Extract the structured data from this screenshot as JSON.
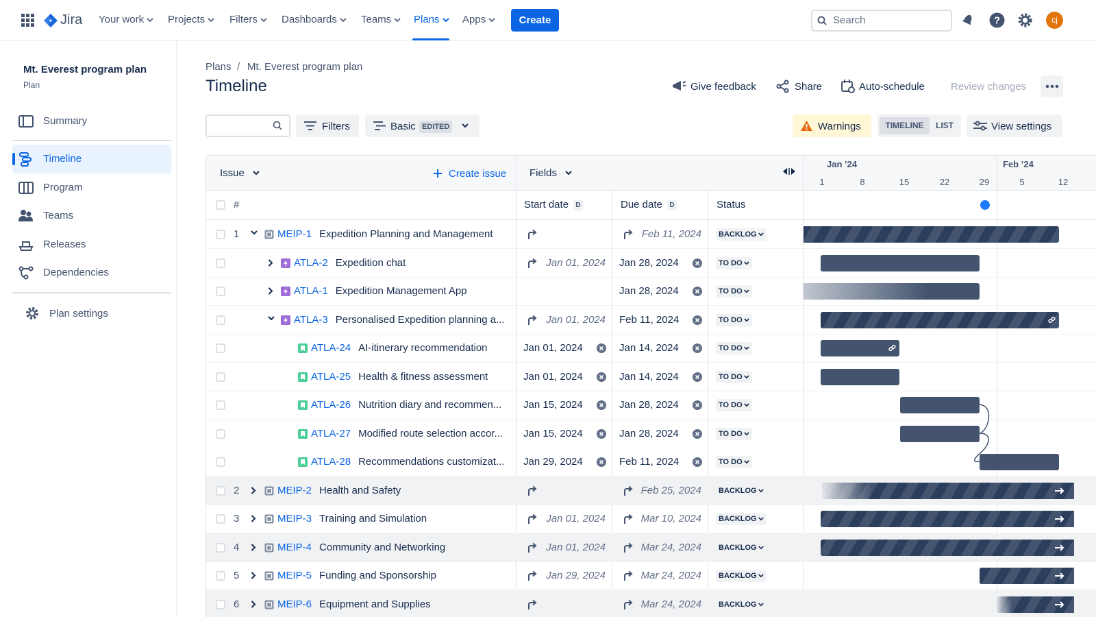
{
  "nav": {
    "logo": "Jira",
    "items": [
      "Your work",
      "Projects",
      "Filters",
      "Dashboards",
      "Teams",
      "Plans",
      "Apps"
    ],
    "active": 5,
    "create": "Create",
    "search": "Search",
    "avatar": "cj"
  },
  "sidebar": {
    "title": "Mt. Everest program plan",
    "subtitle": "Plan",
    "items": [
      "Summary",
      "Timeline",
      "Program",
      "Teams",
      "Releases",
      "Dependencies"
    ],
    "active": 1,
    "settings": "Plan settings"
  },
  "header": {
    "breadcrumb": [
      "Plans",
      "Mt. Everest program plan"
    ],
    "title": "Timeline",
    "actions": [
      "Give feedback",
      "Share",
      "Auto-schedule",
      "Review changes"
    ]
  },
  "toolbar": {
    "filters": "Filters",
    "view": "Basic",
    "edited": "EDITED",
    "warnings": "Warnings",
    "toggle": [
      "TIMELINE",
      "LIST"
    ],
    "view_settings": "View settings"
  },
  "table": {
    "issue": "Issue",
    "create_issue": "Create issue",
    "fields": "Fields",
    "columns": {
      "number": "#",
      "start": "Start date",
      "due": "Due date",
      "status": "Status",
      "sort": "D"
    },
    "months": [
      "Jan ’24",
      "Feb ’24"
    ],
    "days": [
      1,
      8,
      15,
      22,
      29,
      5,
      12
    ],
    "rows": [
      {
        "number": 1,
        "level": 0,
        "expanded": true,
        "key": "MEIP-1",
        "summary": "Expedition Planning and Management",
        "start_rolled_up": true,
        "due": "Feb 11, 2024",
        "due_rolled_up": true,
        "status": "BACKLOG"
      },
      {
        "level": 1,
        "expanded": false,
        "key": "ATLA-2",
        "summary": "Expedition chat",
        "start": "Jan 01, 2024",
        "start_rolled_up": true,
        "due": "Jan 28, 2024",
        "status": "TO DO"
      },
      {
        "level": 1,
        "expanded": false,
        "key": "ATLA-1",
        "summary": "Expedition Management App",
        "due": "Jan 28, 2024",
        "status": "TO DO"
      },
      {
        "level": 1,
        "expanded": true,
        "key": "ATLA-3",
        "summary": "Personalised Expedition planning a...",
        "start": "Jan 01, 2024",
        "start_rolled_up": true,
        "due": "Feb 11, 2024",
        "status": "TO DO"
      },
      {
        "level": 2,
        "key": "ATLA-24",
        "summary": "AI-itinerary recommendation",
        "start": "Jan 01, 2024",
        "due": "Jan 14, 2024",
        "status": "TO DO"
      },
      {
        "level": 2,
        "key": "ATLA-25",
        "summary": "Health & fitness assessment",
        "start": "Jan 01, 2024",
        "due": "Jan 14, 2024",
        "status": "TO DO"
      },
      {
        "level": 2,
        "key": "ATLA-26",
        "summary": "Nutrition diary and recommen...",
        "start": "Jan 15, 2024",
        "due": "Jan 28, 2024",
        "status": "TO DO"
      },
      {
        "level": 2,
        "key": "ATLA-27",
        "summary": "Modified route selection accor...",
        "start": "Jan 15, 2024",
        "due": "Jan 28, 2024",
        "status": "TO DO"
      },
      {
        "level": 2,
        "key": "ATLA-28",
        "summary": "Recommendations customizat...",
        "start": "Jan 29, 2024",
        "due": "Feb 11, 2024",
        "status": "TO DO"
      },
      {
        "number": 2,
        "level": 0,
        "expanded": false,
        "key": "MEIP-2",
        "summary": "Health and Safety",
        "start_rolled_up": true,
        "due": "Feb 25, 2024",
        "due_rolled_up": true,
        "status": "BACKLOG"
      },
      {
        "number": 3,
        "level": 0,
        "expanded": false,
        "key": "MEIP-3",
        "summary": "Training and Simulation",
        "start": "Jan 01, 2024",
        "start_rolled_up": true,
        "due": "Mar 10, 2024",
        "due_rolled_up": true,
        "status": "BACKLOG"
      },
      {
        "number": 4,
        "level": 0,
        "expanded": false,
        "key": "MEIP-4",
        "summary": "Community and Networking",
        "start": "Jan 01, 2024",
        "start_rolled_up": true,
        "due": "Mar 24, 2024",
        "due_rolled_up": true,
        "status": "BACKLOG"
      },
      {
        "number": 5,
        "level": 0,
        "expanded": false,
        "key": "MEIP-5",
        "summary": "Funding and Sponsorship",
        "start": "Jan 29, 2024",
        "start_rolled_up": true,
        "due": "Mar 24, 2024",
        "due_rolled_up": true,
        "status": "BACKLOG"
      },
      {
        "number": 6,
        "level": 0,
        "expanded": false,
        "key": "MEIP-6",
        "summary": "Equipment and Supplies",
        "start_rolled_up": true,
        "due": "Mar 24, 2024",
        "due_rolled_up": true,
        "status": "BACKLOG"
      }
    ]
  }
}
